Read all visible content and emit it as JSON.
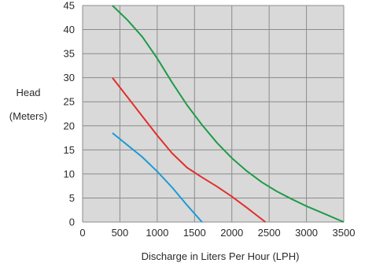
{
  "chart_data": {
    "type": "line",
    "title": "",
    "xlabel": "Discharge in Liters Per Hour (LPH)",
    "ylabel": [
      "Head",
      "(Meters)"
    ],
    "xlim": [
      0,
      3500
    ],
    "ylim": [
      0,
      45
    ],
    "x_ticks": [
      0,
      500,
      1000,
      1500,
      2000,
      2500,
      3000,
      3500
    ],
    "y_ticks": [
      0,
      5,
      10,
      15,
      20,
      25,
      30,
      35,
      40,
      45
    ],
    "grid": true,
    "legend": "none",
    "colors": {
      "plot_background": "#d9d9d9",
      "grid": "#8c8c8c"
    },
    "series": [
      {
        "color": "#1e9ad6",
        "points": [
          [
            400,
            18.5
          ],
          [
            600,
            16
          ],
          [
            800,
            13.5
          ],
          [
            1000,
            10.5
          ],
          [
            1200,
            7.2
          ],
          [
            1400,
            3.5
          ],
          [
            1600,
            0
          ]
        ]
      },
      {
        "color": "#e0302b",
        "points": [
          [
            400,
            30
          ],
          [
            600,
            26
          ],
          [
            800,
            22
          ],
          [
            1000,
            18
          ],
          [
            1200,
            14.3
          ],
          [
            1400,
            11.3
          ],
          [
            1600,
            9.3
          ],
          [
            1800,
            7.4
          ],
          [
            2000,
            5.3
          ],
          [
            2200,
            3
          ],
          [
            2450,
            0
          ]
        ]
      },
      {
        "color": "#1f9b48",
        "points": [
          [
            400,
            45
          ],
          [
            600,
            42
          ],
          [
            800,
            38.5
          ],
          [
            1000,
            34
          ],
          [
            1200,
            29
          ],
          [
            1400,
            24.3
          ],
          [
            1600,
            20.2
          ],
          [
            1800,
            16.5
          ],
          [
            2000,
            13.3
          ],
          [
            2200,
            10.6
          ],
          [
            2400,
            8.3
          ],
          [
            2600,
            6.4
          ],
          [
            2800,
            4.8
          ],
          [
            3000,
            3.3
          ],
          [
            3200,
            2
          ],
          [
            3500,
            0
          ]
        ]
      }
    ]
  }
}
